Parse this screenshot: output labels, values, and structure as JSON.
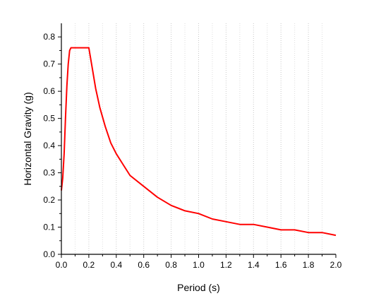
{
  "chart_data": {
    "type": "line",
    "title": "",
    "xlabel": "Period (s)",
    "ylabel": "Horizontal Gravity (g)",
    "xlim": [
      0.0,
      2.0
    ],
    "ylim": [
      0.0,
      0.85
    ],
    "x_ticks": [
      0.0,
      0.2,
      0.4,
      0.6,
      0.8,
      1.0,
      1.2,
      1.4,
      1.6,
      1.8,
      2.0
    ],
    "x_tick_labels": [
      "0.0",
      "0.2",
      "0.4",
      "0.6",
      "0.8",
      "1.0",
      "1.2",
      "1.4",
      "1.6",
      "1.8",
      "2.0"
    ],
    "y_ticks": [
      0.0,
      0.1,
      0.2,
      0.3,
      0.4,
      0.5,
      0.6,
      0.7,
      0.8
    ],
    "y_tick_labels": [
      "0.0",
      "0.1",
      "0.2",
      "0.3",
      "0.4",
      "0.5",
      "0.6",
      "0.7",
      "0.8"
    ],
    "grid": "vertical dotted at x ticks and mid-ticks",
    "legend": "none",
    "line_color": "#ff0000",
    "series": [
      {
        "x": [
          0.0,
          0.01,
          0.02,
          0.03,
          0.04,
          0.05,
          0.06,
          0.07,
          0.2,
          0.22,
          0.25,
          0.28,
          0.32,
          0.36,
          0.4,
          0.45,
          0.5,
          0.6,
          0.7,
          0.8,
          0.9,
          1.0,
          1.1,
          1.2,
          1.3,
          1.4,
          1.5,
          1.6,
          1.7,
          1.8,
          1.9,
          2.0
        ],
        "y": [
          0.235,
          0.28,
          0.37,
          0.5,
          0.62,
          0.7,
          0.75,
          0.76,
          0.76,
          0.7,
          0.61,
          0.54,
          0.47,
          0.41,
          0.37,
          0.33,
          0.29,
          0.25,
          0.21,
          0.18,
          0.16,
          0.15,
          0.13,
          0.12,
          0.11,
          0.11,
          0.1,
          0.09,
          0.09,
          0.08,
          0.08,
          0.07
        ]
      }
    ]
  }
}
